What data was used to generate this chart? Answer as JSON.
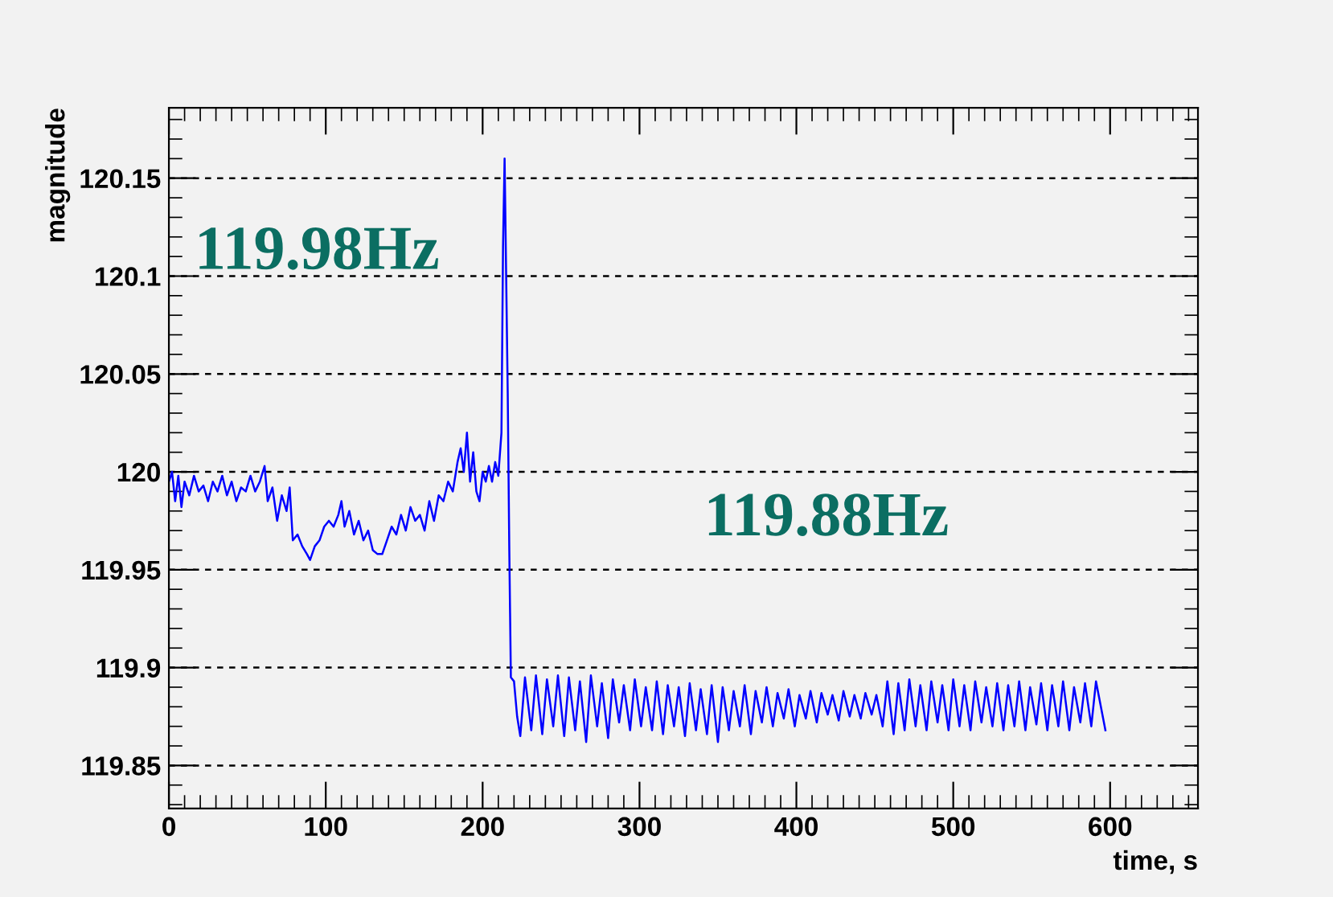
{
  "chart_data": {
    "type": "line",
    "xlabel": "time, s",
    "ylabel": "magnitude",
    "xlim": [
      0,
      656
    ],
    "ylim": [
      119.828,
      120.186
    ],
    "xticks": [
      0,
      100,
      200,
      300,
      400,
      500,
      600
    ],
    "yticks": [
      119.85,
      119.9,
      119.95,
      120,
      120.05,
      120.1,
      120.15
    ],
    "grid": "y",
    "legend": false,
    "annotations": [
      "119.98Hz",
      "119.88Hz"
    ],
    "series": [
      {
        "color": "#0000ff",
        "x": [
          0,
          2,
          4,
          6,
          8,
          10,
          13,
          16,
          19,
          22,
          25,
          28,
          31,
          34,
          37,
          40,
          43,
          46,
          49,
          52,
          55,
          58,
          61,
          63,
          66,
          69,
          72,
          75,
          77,
          79,
          82,
          85,
          88,
          90,
          93,
          96,
          99,
          102,
          105,
          108,
          110,
          112,
          115,
          118,
          121,
          124,
          127,
          130,
          133,
          136,
          139,
          142,
          145,
          148,
          151,
          154,
          157,
          160,
          163,
          166,
          169,
          172,
          175,
          178,
          181,
          184,
          186,
          188,
          190,
          192,
          194,
          196,
          198,
          200,
          202,
          204,
          206,
          208,
          210,
          212,
          213,
          214,
          215,
          216,
          217,
          218,
          220,
          222,
          224,
          227,
          231,
          234,
          238,
          241,
          245,
          248,
          252,
          255,
          259,
          262,
          266,
          269,
          273,
          276,
          280,
          283,
          287,
          290,
          294,
          297,
          301,
          304,
          308,
          311,
          315,
          318,
          322,
          325,
          329,
          332,
          336,
          339,
          343,
          346,
          350,
          353,
          357,
          360,
          364,
          367,
          371,
          374,
          378,
          381,
          385,
          388,
          392,
          395,
          399,
          402,
          406,
          409,
          413,
          416,
          420,
          423,
          427,
          430,
          434,
          437,
          441,
          444,
          448,
          451,
          455,
          458,
          462,
          465,
          469,
          472,
          476,
          479,
          483,
          486,
          490,
          493,
          497,
          500,
          504,
          507,
          511,
          514,
          518,
          521,
          525,
          528,
          532,
          535,
          539,
          542,
          546,
          549,
          553,
          556,
          560,
          563,
          567,
          570,
          574,
          577,
          581,
          584,
          588,
          591,
          597
        ],
        "values": [
          119.995,
          120.0,
          119.985,
          119.998,
          119.982,
          119.995,
          119.988,
          119.998,
          119.99,
          119.993,
          119.985,
          119.995,
          119.99,
          119.998,
          119.988,
          119.995,
          119.985,
          119.992,
          119.99,
          119.998,
          119.99,
          119.995,
          120.003,
          119.985,
          119.992,
          119.975,
          119.988,
          119.98,
          119.992,
          119.965,
          119.968,
          119.962,
          119.958,
          119.955,
          119.962,
          119.965,
          119.972,
          119.975,
          119.972,
          119.978,
          119.985,
          119.972,
          119.98,
          119.968,
          119.975,
          119.965,
          119.97,
          119.96,
          119.958,
          119.958,
          119.965,
          119.972,
          119.968,
          119.978,
          119.97,
          119.982,
          119.975,
          119.978,
          119.97,
          119.985,
          119.975,
          119.988,
          119.985,
          119.995,
          119.99,
          120.005,
          120.012,
          120.0,
          120.02,
          119.995,
          120.01,
          119.99,
          119.985,
          120.0,
          119.995,
          120.003,
          119.995,
          120.005,
          119.998,
          120.02,
          120.115,
          120.16,
          120.1,
          120.04,
          119.96,
          119.895,
          119.893,
          119.875,
          119.865,
          119.895,
          119.868,
          119.896,
          119.866,
          119.894,
          119.87,
          119.896,
          119.865,
          119.895,
          119.868,
          119.893,
          119.862,
          119.896,
          119.87,
          119.892,
          119.864,
          119.894,
          119.872,
          119.891,
          119.868,
          119.894,
          119.87,
          119.89,
          119.868,
          119.893,
          119.866,
          119.891,
          119.87,
          119.89,
          119.865,
          119.892,
          119.868,
          119.889,
          119.866,
          119.891,
          119.862,
          119.89,
          119.868,
          119.888,
          119.87,
          119.891,
          119.866,
          119.888,
          119.872,
          119.89,
          119.87,
          119.887,
          119.874,
          119.889,
          119.87,
          119.886,
          119.874,
          119.888,
          119.872,
          119.887,
          119.876,
          119.886,
          119.873,
          119.888,
          119.875,
          119.886,
          119.874,
          119.887,
          119.876,
          119.886,
          119.87,
          119.893,
          119.866,
          119.892,
          119.868,
          119.894,
          119.87,
          119.891,
          119.868,
          119.893,
          119.872,
          119.891,
          119.868,
          119.894,
          119.87,
          119.891,
          119.868,
          119.893,
          119.872,
          119.89,
          119.87,
          119.892,
          119.868,
          119.891,
          119.87,
          119.893,
          119.868,
          119.89,
          119.871,
          119.892,
          119.868,
          119.891,
          119.87,
          119.893,
          119.868,
          119.89,
          119.872,
          119.892,
          119.87,
          119.893,
          119.868
        ]
      }
    ]
  }
}
